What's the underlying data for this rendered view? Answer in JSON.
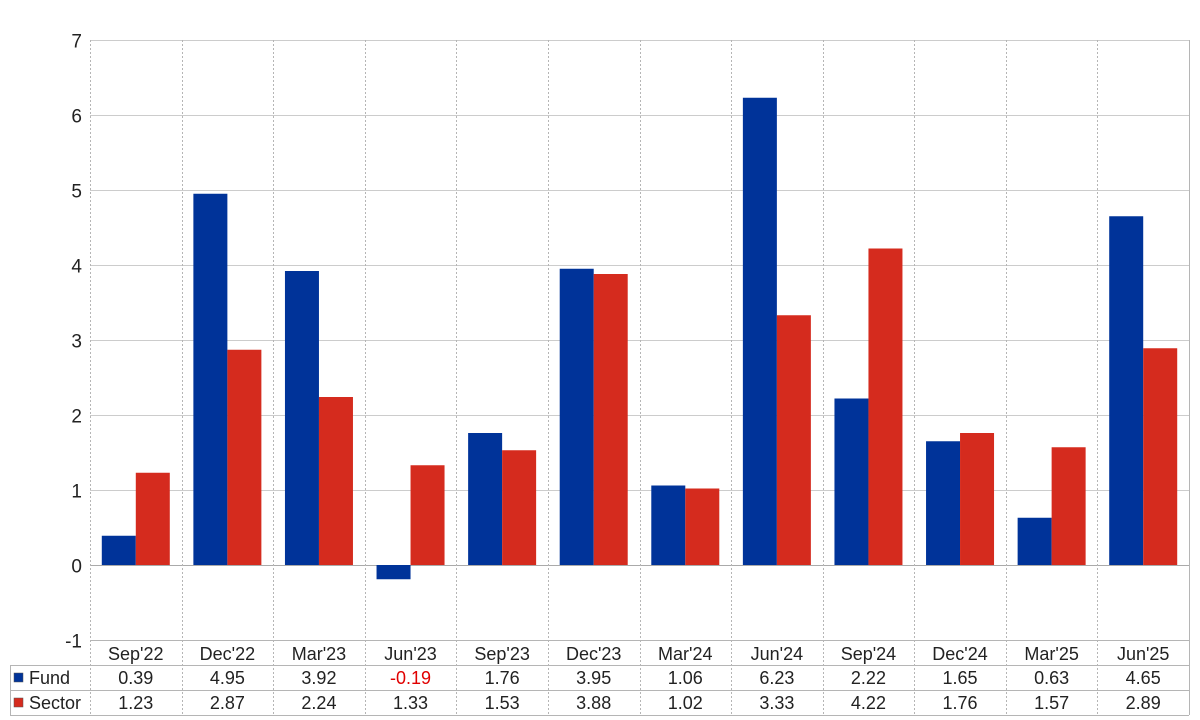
{
  "chart_data": {
    "type": "bar",
    "categories": [
      "Sep'22",
      "Dec'22",
      "Mar'23",
      "Jun'23",
      "Sep'23",
      "Dec'23",
      "Mar'24",
      "Jun'24",
      "Sep'24",
      "Dec'24",
      "Mar'25",
      "Jun'25"
    ],
    "series": [
      {
        "name": "Fund",
        "color": "#003399",
        "values": [
          0.39,
          4.95,
          3.92,
          -0.19,
          1.76,
          3.95,
          1.06,
          6.23,
          2.22,
          1.65,
          0.63,
          4.65
        ],
        "labels": [
          "0.39",
          "4.95",
          "3.92",
          "-0.19",
          "1.76",
          "3.95",
          "1.06",
          "6.23",
          "2.22",
          "1.65",
          "0.63",
          "4.65"
        ]
      },
      {
        "name": "Sector",
        "color": "#D52B1E",
        "values": [
          1.23,
          2.87,
          2.24,
          1.33,
          1.53,
          3.88,
          1.02,
          3.33,
          4.22,
          1.76,
          1.57,
          2.89
        ],
        "labels": [
          "1.23",
          "2.87",
          "2.24",
          "1.33",
          "1.53",
          "3.88",
          "1.02",
          "3.33",
          "4.22",
          "1.76",
          "1.57",
          "2.89"
        ]
      }
    ],
    "ylim": [
      -1,
      7
    ],
    "yticks": [
      "-1",
      "0",
      "1",
      "2",
      "3",
      "4",
      "5",
      "6",
      "7"
    ],
    "negative_value_color": "#E00000",
    "grid": true,
    "legend": "data-table-bottom",
    "title": "",
    "xlabel": "",
    "ylabel": ""
  }
}
